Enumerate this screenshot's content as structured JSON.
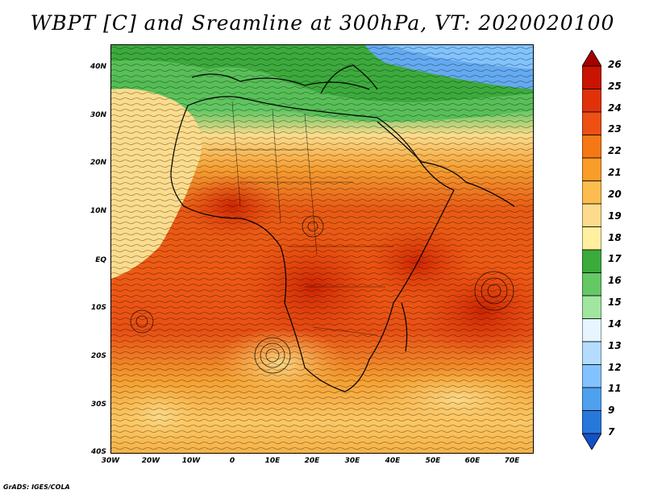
{
  "title": "WBPT [C] and Sreamline at 300hPa, VT: 2020020100",
  "credit": "GrADS: IGES/COLA",
  "lat_labels": [
    "40N",
    "30N",
    "20N",
    "10N",
    "EQ",
    "10S",
    "20S",
    "30S",
    "40S"
  ],
  "lon_labels": [
    "30W",
    "20W",
    "10W",
    "0",
    "10E",
    "20E",
    "30E",
    "40E",
    "50E",
    "60E",
    "70E"
  ],
  "colorbar": {
    "labels": [
      "26",
      "25",
      "24",
      "23",
      "22",
      "21",
      "20",
      "19",
      "18",
      "17",
      "16",
      "15",
      "14",
      "13",
      "12",
      "11",
      "9",
      "7"
    ],
    "colors": [
      "#a50000",
      "#c81400",
      "#e0320a",
      "#ee5014",
      "#f57814",
      "#fa9c28",
      "#fcbc50",
      "#fcdc8c",
      "#fff0a0",
      "#3caa3c",
      "#64c864",
      "#a0e6a0",
      "#e6f5ff",
      "#b4dcff",
      "#82c3ff",
      "#50a0f0",
      "#2878dc",
      "#1450c8"
    ]
  }
}
